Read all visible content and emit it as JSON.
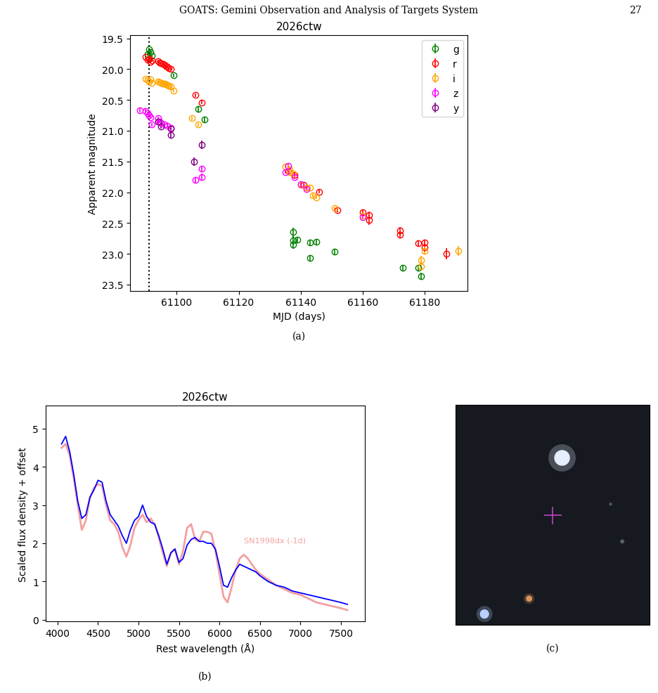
{
  "header": {
    "title": "GOATS: Gemini Observation and Analysis of Targets System",
    "page": "27"
  },
  "chart_data": [
    {
      "type": "errorbar",
      "title": "2026ctw",
      "caption": "(a)",
      "x_label": "MJD (days)",
      "y_label": "Apparent magnitude",
      "xlim": [
        61085,
        61194
      ],
      "xticks": [
        61100,
        61120,
        61140,
        61160,
        61180
      ],
      "ylim": [
        23.6,
        19.45
      ],
      "yticks": [
        {
          "value": 19.5,
          "label": "19.5"
        },
        {
          "value": 20,
          "label": "20.0"
        },
        {
          "value": 20.5,
          "label": "20.5"
        },
        {
          "value": 21,
          "label": "21.0"
        },
        {
          "value": 21.5,
          "label": "21.5"
        },
        {
          "value": 22,
          "label": "22.0"
        },
        {
          "value": 22.5,
          "label": "22.5"
        },
        {
          "value": 23,
          "label": "23.0"
        },
        {
          "value": 23.5,
          "label": "23.5"
        }
      ],
      "legend": "upper right",
      "marker": "o",
      "vline": {
        "x": 61091,
        "line_style": "dotted",
        "color": "#000000"
      },
      "series": [
        {
          "name": "g",
          "color": "#008000",
          "x": [
            61090.5,
            61091,
            61091.5,
            61092,
            61099,
            61107,
            61109,
            61137.5,
            61137.5,
            61137.5,
            61139,
            61143,
            61143,
            61145,
            61151,
            61173,
            61178,
            61179
          ],
          "values": [
            19.75,
            19.68,
            19.72,
            19.78,
            20.1,
            20.65,
            20.82,
            22.65,
            22.78,
            22.85,
            22.77,
            22.82,
            23.07,
            22.81,
            22.97,
            23.23,
            23.23,
            23.36
          ],
          "errors": [
            0.03,
            0.03,
            0.03,
            0.03,
            0.03,
            0.04,
            0.04,
            0.07,
            0.07,
            0.07,
            0.05,
            0.04,
            0.05,
            0.04,
            0.04,
            0.05,
            0.05,
            0.05
          ]
        },
        {
          "name": "r",
          "color": "#ff0000",
          "x": [
            61090,
            61090.5,
            61091,
            61091.5,
            61092,
            61094,
            61094.5,
            61095,
            61095.5,
            61096,
            61096.5,
            61097,
            61097.5,
            61098,
            61106,
            61108,
            61136,
            61138,
            61141,
            61146,
            61152,
            61160,
            61162,
            61162,
            61172,
            61172,
            61178,
            61180,
            61180,
            61187
          ],
          "values": [
            19.8,
            19.85,
            19.83,
            19.88,
            19.86,
            19.87,
            19.89,
            19.9,
            19.92,
            19.93,
            19.95,
            19.96,
            19.98,
            20.0,
            20.42,
            20.54,
            21.65,
            21.72,
            21.88,
            21.99,
            22.29,
            22.33,
            22.37,
            22.45,
            22.62,
            22.69,
            22.83,
            22.82,
            22.9,
            23.0
          ],
          "errors": [
            0.02,
            0.02,
            0.02,
            0.02,
            0.02,
            0.02,
            0.02,
            0.02,
            0.02,
            0.02,
            0.02,
            0.02,
            0.02,
            0.02,
            0.03,
            0.03,
            0.03,
            0.03,
            0.03,
            0.03,
            0.03,
            0.05,
            0.06,
            0.08,
            0.05,
            0.05,
            0.04,
            0.05,
            0.06,
            0.09
          ]
        },
        {
          "name": "i",
          "color": "#ffa500",
          "x": [
            61090,
            61090.5,
            61091,
            61091.5,
            61092,
            61094,
            61094.5,
            61095,
            61095.5,
            61096,
            61096.5,
            61097,
            61097.5,
            61098,
            61099,
            61105,
            61107,
            61135,
            61136.5,
            61136.5,
            61137.5,
            61140,
            61142,
            61143,
            61144,
            61145,
            61151,
            61160,
            61179,
            61179,
            61180,
            61191
          ],
          "values": [
            20.15,
            20.18,
            20.2,
            20.17,
            20.22,
            20.2,
            20.21,
            20.22,
            20.23,
            20.24,
            20.25,
            20.26,
            20.27,
            20.28,
            20.35,
            20.8,
            20.9,
            21.58,
            21.63,
            21.67,
            21.7,
            21.88,
            21.92,
            21.93,
            22.05,
            22.08,
            22.26,
            22.38,
            23.1,
            23.2,
            22.95,
            22.95
          ],
          "errors": [
            0.02,
            0.02,
            0.02,
            0.02,
            0.02,
            0.02,
            0.02,
            0.02,
            0.02,
            0.02,
            0.02,
            0.02,
            0.02,
            0.02,
            0.02,
            0.03,
            0.03,
            0.03,
            0.03,
            0.03,
            0.03,
            0.03,
            0.03,
            0.03,
            0.03,
            0.03,
            0.03,
            0.04,
            0.07,
            0.07,
            0.06,
            0.08
          ]
        },
        {
          "name": "z",
          "color": "#ff00ff",
          "x": [
            61088,
            61090,
            61090.5,
            61091,
            61091.5,
            61092,
            61094,
            61094.5,
            61095,
            61096,
            61097,
            61098,
            61106,
            61108,
            61108,
            61135,
            61136,
            61138,
            61140,
            61142,
            61160
          ],
          "values": [
            20.67,
            20.68,
            20.72,
            20.75,
            20.78,
            20.9,
            20.8,
            20.85,
            20.88,
            20.9,
            20.92,
            20.95,
            21.8,
            21.62,
            21.75,
            21.67,
            21.57,
            21.75,
            21.87,
            21.95,
            22.4
          ],
          "errors": [
            0.03,
            0.03,
            0.03,
            0.03,
            0.03,
            0.03,
            0.03,
            0.03,
            0.03,
            0.03,
            0.03,
            0.03,
            0.05,
            0.05,
            0.05,
            0.03,
            0.03,
            0.03,
            0.03,
            0.03,
            0.04
          ]
        },
        {
          "name": "y",
          "color": "#800080",
          "x": [
            61094,
            61095,
            61098,
            61098,
            61105.5,
            61108
          ],
          "values": [
            20.85,
            20.93,
            20.97,
            21.07,
            21.5,
            21.23
          ],
          "errors": [
            0.04,
            0.04,
            0.04,
            0.04,
            0.07,
            0.07
          ]
        }
      ]
    },
    {
      "type": "line",
      "title": "2026ctw",
      "caption": "(b)",
      "x_label": "Rest wavelength (Å)",
      "y_label": "Scaled flux density + offset",
      "xlim": [
        3850,
        7800
      ],
      "xticks": [
        4000,
        4500,
        5000,
        5500,
        6000,
        6500,
        7000,
        7500
      ],
      "ylim": [
        -0.05,
        5.6
      ],
      "yticks": [
        0,
        1,
        2,
        3,
        4,
        5
      ],
      "x": [
        4050,
        4100,
        4150,
        4200,
        4250,
        4300,
        4350,
        4400,
        4450,
        4500,
        4550,
        4600,
        4650,
        4700,
        4750,
        4800,
        4850,
        4900,
        4950,
        5000,
        5050,
        5100,
        5150,
        5200,
        5250,
        5300,
        5350,
        5400,
        5450,
        5500,
        5550,
        5600,
        5650,
        5700,
        5750,
        5800,
        5850,
        5900,
        5950,
        6000,
        6050,
        6100,
        6150,
        6200,
        6250,
        6300,
        6350,
        6400,
        6450,
        6500,
        6600,
        6700,
        6800,
        6900,
        7000,
        7100,
        7200,
        7300,
        7400,
        7500,
        7580
      ],
      "series": [
        {
          "color": "#f4a0a0",
          "annotation": "SN1998dx (-1d)",
          "values": [
            4.5,
            4.6,
            4.3,
            3.7,
            3.0,
            2.35,
            2.6,
            3.2,
            3.45,
            3.55,
            3.5,
            3.0,
            2.6,
            2.5,
            2.3,
            1.9,
            1.65,
            1.95,
            2.4,
            2.6,
            2.75,
            2.55,
            2.65,
            2.5,
            2.15,
            1.75,
            1.4,
            1.75,
            1.85,
            1.45,
            1.8,
            2.4,
            2.5,
            2.1,
            2.05,
            2.3,
            2.3,
            2.25,
            1.8,
            1.2,
            0.6,
            0.45,
            0.85,
            1.3,
            1.6,
            1.7,
            1.6,
            1.45,
            1.3,
            1.2,
            1.05,
            0.9,
            0.8,
            0.7,
            0.65,
            0.55,
            0.45,
            0.4,
            0.35,
            0.3,
            0.25
          ]
        },
        {
          "color": "#0000ff",
          "values": [
            4.6,
            4.8,
            4.4,
            3.8,
            3.1,
            2.65,
            2.75,
            3.2,
            3.4,
            3.65,
            3.6,
            3.1,
            2.75,
            2.6,
            2.45,
            2.2,
            2.0,
            2.35,
            2.6,
            2.7,
            3.0,
            2.7,
            2.55,
            2.5,
            2.2,
            1.85,
            1.45,
            1.75,
            1.85,
            1.5,
            1.6,
            1.95,
            2.1,
            2.15,
            2.05,
            2.05,
            2.0,
            2.0,
            1.85,
            1.4,
            0.9,
            0.85,
            1.1,
            1.3,
            1.45,
            1.4,
            1.35,
            1.3,
            1.25,
            1.15,
            1.0,
            0.9,
            0.85,
            0.75,
            0.7,
            0.65,
            0.6,
            0.55,
            0.5,
            0.45,
            0.4
          ]
        }
      ]
    },
    {
      "type": "image",
      "caption": "(c)",
      "tick_labels": false,
      "xlim": [
        0,
        1
      ],
      "ylim": [
        0,
        1
      ],
      "color": "#16191f",
      "sources": [
        {
          "x": 0.55,
          "y": 0.76,
          "size": 260,
          "color": "#e6eeff"
        },
        {
          "x": 0.38,
          "y": 0.12,
          "size": 40,
          "color": "#d9955a"
        },
        {
          "x": 0.15,
          "y": 0.05,
          "size": 90,
          "color": "#b8d0ff"
        },
        {
          "x": 0.86,
          "y": 0.38,
          "size": 10,
          "color": "#6a6f80"
        },
        {
          "x": 0.8,
          "y": 0.55,
          "size": 6,
          "color": "#5a5f70"
        }
      ],
      "target": {
        "x": 0.5,
        "y": 0.5,
        "color": "#c040c0",
        "marker": "+"
      }
    }
  ]
}
